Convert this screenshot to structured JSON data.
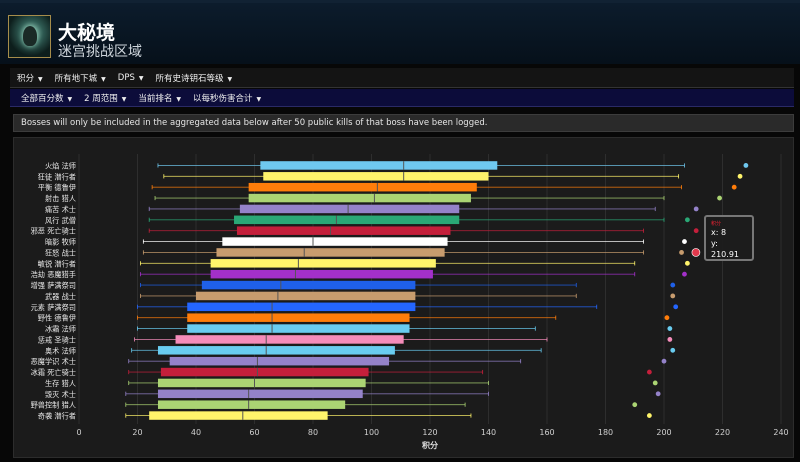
{
  "header": {
    "title": "大秘境",
    "subtitle": "迷宫挑战区域"
  },
  "filters_primary": [
    {
      "label": "积分"
    },
    {
      "label": "所有地下城"
    },
    {
      "label": "DPS"
    },
    {
      "label": "所有史诗钥石等级"
    }
  ],
  "filters_secondary": [
    {
      "label": "全部百分数"
    },
    {
      "label": "2 周范围"
    },
    {
      "label": "当前排名"
    },
    {
      "label": "以每秒伤害合计"
    }
  ],
  "notice": "Bosses will only be included in the aggregated data below after 50 public kills of that boss have been logged.",
  "tooltip": {
    "name": "积分",
    "x_label": "x: 8",
    "y_label": "y: 210.91"
  },
  "chart_data": {
    "type": "boxplot",
    "orientation": "horizontal",
    "title": "",
    "subtitle": "",
    "xlabel": "积分",
    "ylabel": "",
    "xlim": [
      0,
      240
    ],
    "xticks": [
      0,
      20,
      40,
      60,
      80,
      100,
      120,
      140,
      160,
      180,
      200,
      220,
      240
    ],
    "grid": true,
    "legend": "none",
    "categories": [
      "火焰 法师",
      "狂徒 潜行者",
      "平衡 德鲁伊",
      "射击 猎人",
      "痛苦 术士",
      "风行 武僧",
      "邪恶 死亡骑士",
      "暗影 牧师",
      "狂怒 战士",
      "敏锐 潜行者",
      "浩劫 恶魔猎手",
      "增强 萨满祭司",
      "武器 战士",
      "元素 萨满祭司",
      "野性 德鲁伊",
      "冰霜 法师",
      "惩戒 圣骑士",
      "奥术 法师",
      "恶魔学识 术士",
      "冰霜 死亡骑士",
      "生存 猎人",
      "毁灭 术士",
      "野兽控制 猎人",
      "奇袭 潜行者"
    ],
    "colors": [
      "#6fc8ef",
      "#fff46b",
      "#ff7d0a",
      "#abd473",
      "#9482c9",
      "#2aa876",
      "#c41f3b",
      "#ffffff",
      "#c79c6e",
      "#fff46b",
      "#a330c9",
      "#1f60e8",
      "#c79c6e",
      "#2466ff",
      "#ff7d0a",
      "#69ccf0",
      "#f58cba",
      "#69ccf0",
      "#9482c9",
      "#c41f3b",
      "#abd473",
      "#9482c9",
      "#abd473",
      "#fff46b"
    ],
    "series": [
      {
        "name": "min",
        "values": [
          27,
          29,
          25,
          26,
          24,
          24,
          24,
          22,
          22,
          21,
          21,
          21,
          21,
          20,
          20,
          20,
          19,
          18,
          17,
          17,
          17,
          16,
          16,
          16
        ]
      },
      {
        "name": "q1",
        "values": [
          62,
          63,
          58,
          58,
          55,
          53,
          54,
          49,
          47,
          45,
          45,
          42,
          40,
          37,
          37,
          37,
          33,
          27,
          31,
          28,
          27,
          27,
          27,
          24
        ]
      },
      {
        "name": "median",
        "values": [
          111,
          111,
          102,
          101,
          92,
          88,
          86,
          80,
          77,
          75,
          74,
          69,
          68,
          66,
          66,
          66,
          64,
          64,
          61,
          61,
          60,
          58,
          58,
          56
        ]
      },
      {
        "name": "q3",
        "values": [
          143,
          140,
          136,
          134,
          130,
          130,
          127,
          126,
          125,
          122,
          121,
          115,
          115,
          115,
          113,
          113,
          111,
          108,
          106,
          99,
          98,
          97,
          91,
          85
        ]
      },
      {
        "name": "max",
        "values": [
          207,
          205,
          206,
          200,
          197,
          200,
          193,
          193,
          193,
          190,
          190,
          170,
          170,
          177,
          163,
          156,
          160,
          158,
          151,
          138,
          140,
          140,
          132,
          134
        ]
      },
      {
        "name": "outlier",
        "values": [
          228,
          226,
          224,
          219,
          211,
          208,
          211,
          207,
          206,
          208,
          207,
          203,
          203,
          204,
          201,
          202,
          202,
          203,
          200,
          195,
          197,
          198,
          190,
          195
        ]
      }
    ],
    "highlight": {
      "x": 8,
      "y": 210.91
    }
  }
}
